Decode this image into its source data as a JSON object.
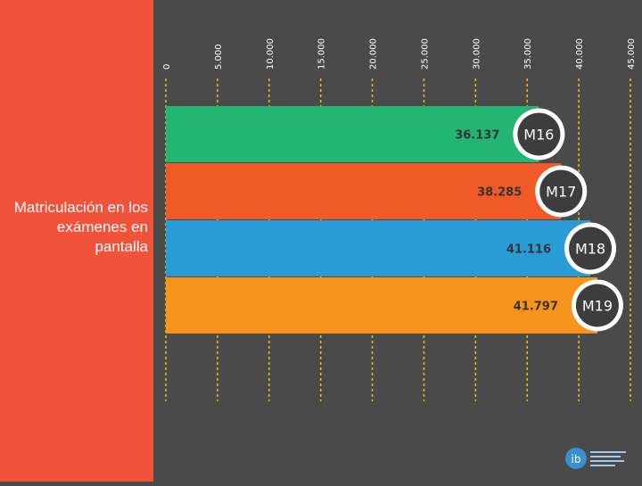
{
  "slide": {
    "title": "Matriculación en los exámenes en pantalla"
  },
  "colors": {
    "left_panel": "#f0523a",
    "background": "#4a4a4a",
    "axis": "#e8c400",
    "tick_text": "#ffffff"
  },
  "chart_data": {
    "type": "bar",
    "orientation": "horizontal",
    "categories": [
      "M16",
      "M17",
      "M18",
      "M19"
    ],
    "values": [
      36137,
      38285,
      41116,
      41797
    ],
    "value_labels": [
      "36.137",
      "38.285",
      "41.116",
      "41.797"
    ],
    "bar_colors": [
      "#22b573",
      "#f05a28",
      "#2a9bd4",
      "#f7941d"
    ],
    "xlim": [
      0,
      45000
    ],
    "ticks": [
      0,
      5000,
      10000,
      15000,
      20000,
      25000,
      30000,
      35000,
      40000,
      45000
    ],
    "tick_labels": [
      "0",
      "5.000",
      "10.000",
      "15.000",
      "20.000",
      "25.000",
      "30.000",
      "35.000",
      "40.000",
      "45.000"
    ],
    "grid": true,
    "legend": "none"
  },
  "logo": {
    "name": "ib-logo-icon"
  }
}
